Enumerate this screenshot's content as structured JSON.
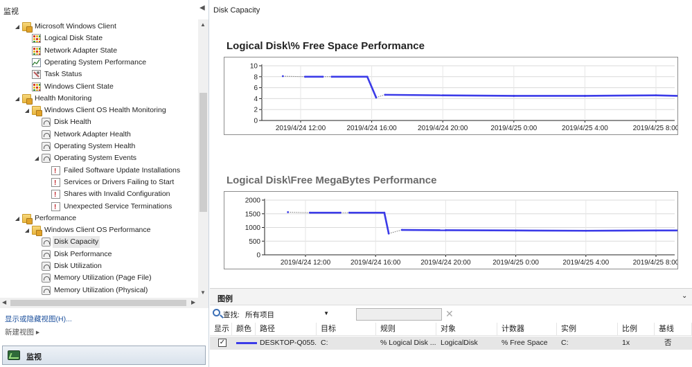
{
  "nav": {
    "title": "监视",
    "tree": [
      {
        "label": "Microsoft Windows Client",
        "icon": "folder-icon"
      },
      {
        "label": "Logical Disk State",
        "icon": "state-view-icon"
      },
      {
        "label": "Network Adapter State",
        "icon": "state-view-icon"
      },
      {
        "label": "Operating System Performance",
        "icon": "performance-view-icon"
      },
      {
        "label": "Task Status",
        "icon": "task-status-icon"
      },
      {
        "label": "Windows Client State",
        "icon": "state-view-icon"
      },
      {
        "label": "Health Monitoring",
        "icon": "folder-icon"
      },
      {
        "label": "Windows Client OS Health Monitoring",
        "icon": "folder-icon"
      },
      {
        "label": "Disk Health",
        "icon": "dashboard-view-icon"
      },
      {
        "label": "Network Adapter Health",
        "icon": "dashboard-view-icon"
      },
      {
        "label": "Operating System Health",
        "icon": "dashboard-view-icon"
      },
      {
        "label": "Operating System Events",
        "icon": "dashboard-view-icon"
      },
      {
        "label": "Failed Software Update Installations",
        "icon": "alert-view-icon"
      },
      {
        "label": "Services or Drivers Failing to Start",
        "icon": "alert-view-icon"
      },
      {
        "label": "Shares with Invalid Configuration",
        "icon": "alert-view-icon"
      },
      {
        "label": "Unexpected Service Terminations",
        "icon": "alert-view-icon"
      },
      {
        "label": "Performance",
        "icon": "folder-icon"
      },
      {
        "label": "Windows Client OS Performance",
        "icon": "folder-icon"
      },
      {
        "label": "Disk Capacity",
        "icon": "dashboard-view-icon"
      },
      {
        "label": "Disk Performance",
        "icon": "dashboard-view-icon"
      },
      {
        "label": "Disk Utilization",
        "icon": "dashboard-view-icon"
      },
      {
        "label": "Memory Utilization (Page File)",
        "icon": "dashboard-view-icon"
      },
      {
        "label": "Memory Utilization (Physical)",
        "icon": "dashboard-view-icon"
      }
    ],
    "selected_label": "Disk Capacity",
    "show_hide_link": "显示或隐藏视图(H)...",
    "new_view_link": "新建视图",
    "new_view_arrow": "▸",
    "bottom_tab_label": "监视"
  },
  "content": {
    "title": "Disk Capacity"
  },
  "chart_data": [
    {
      "type": "line",
      "title": "Logical Disk\\% Free Space Performance",
      "xlabel": "",
      "ylabel": "",
      "ylim": [
        0,
        10
      ],
      "yticks": [
        0,
        2,
        4,
        6,
        8,
        10
      ],
      "xticks": [
        "2019/4/24 12:00",
        "2019/4/24 16:00",
        "2019/4/24 20:00",
        "2019/4/25 0:00",
        "2019/4/25 4:00",
        "2019/4/25 8:00"
      ],
      "grid": true,
      "series": [
        {
          "color": "#3b3be8",
          "x": [
            "2019/4/24 11:00",
            "2019/4/24 12:15",
            "2019/4/24 13:15",
            "2019/4/24 13:45",
            "2019/4/24 15:45",
            "2019/4/24 16:15",
            "2019/4/24 16:45",
            "2019/4/24 20:00",
            "2019/4/25 0:00",
            "2019/4/25 4:00",
            "2019/4/25 8:00",
            "2019/4/25 9:15"
          ],
          "values": [
            8.1,
            8.0,
            8.0,
            8.0,
            8.0,
            4.2,
            4.7,
            4.6,
            4.5,
            4.5,
            4.6,
            4.5
          ],
          "gaps": [
            "2019/4/24 11:00-12:15",
            "2019/4/24 13:15-13:45",
            "2019/4/24 16:15-16:45"
          ]
        }
      ]
    },
    {
      "type": "line",
      "title": "Logical Disk\\Free MegaBytes Performance",
      "xlabel": "",
      "ylabel": "",
      "ylim": [
        0,
        2000
      ],
      "yticks": [
        0,
        500,
        1000,
        1500,
        2000
      ],
      "xticks": [
        "2019/4/24 12:00",
        "2019/4/24 16:00",
        "2019/4/24 20:00",
        "2019/4/25 0:00",
        "2019/4/25 4:00",
        "2019/4/25 8:00"
      ],
      "grid": true,
      "series": [
        {
          "color": "#3b3be8",
          "x": [
            "2019/4/24 11:00",
            "2019/4/24 12:15",
            "2019/4/24 14:00",
            "2019/4/24 14:30",
            "2019/4/24 16:30",
            "2019/4/24 16:45",
            "2019/4/24 17:30",
            "2019/4/24 20:00",
            "2019/4/25 0:00",
            "2019/4/25 4:00",
            "2019/4/25 8:00",
            "2019/4/25 9:30"
          ],
          "values": [
            1560,
            1540,
            1540,
            1540,
            1540,
            780,
            910,
            900,
            890,
            880,
            890,
            890
          ],
          "gaps": [
            "2019/4/24 11:00-12:15",
            "2019/4/24 14:00-14:30",
            "2019/4/24 16:45-17:30"
          ]
        }
      ]
    }
  ],
  "legend": {
    "title": "图例",
    "toggle": "⌄",
    "find_label": "查找:",
    "find_value": "所有项目",
    "columns": [
      "显示",
      "颜色",
      "路径",
      "目标",
      "规则",
      "对象",
      "计数器",
      "实例",
      "比例",
      "基线"
    ],
    "row": {
      "checked": "✓",
      "path": "DESKTOP-Q055...",
      "target": "C:",
      "rule": "% Logical Disk ...",
      "object": "LogicalDisk",
      "counter": "% Free Space",
      "instance": "C:",
      "scale": "1x",
      "baseline": "否"
    }
  },
  "colors": {
    "series": "#3b3be8",
    "link": "#1b4f9c"
  }
}
